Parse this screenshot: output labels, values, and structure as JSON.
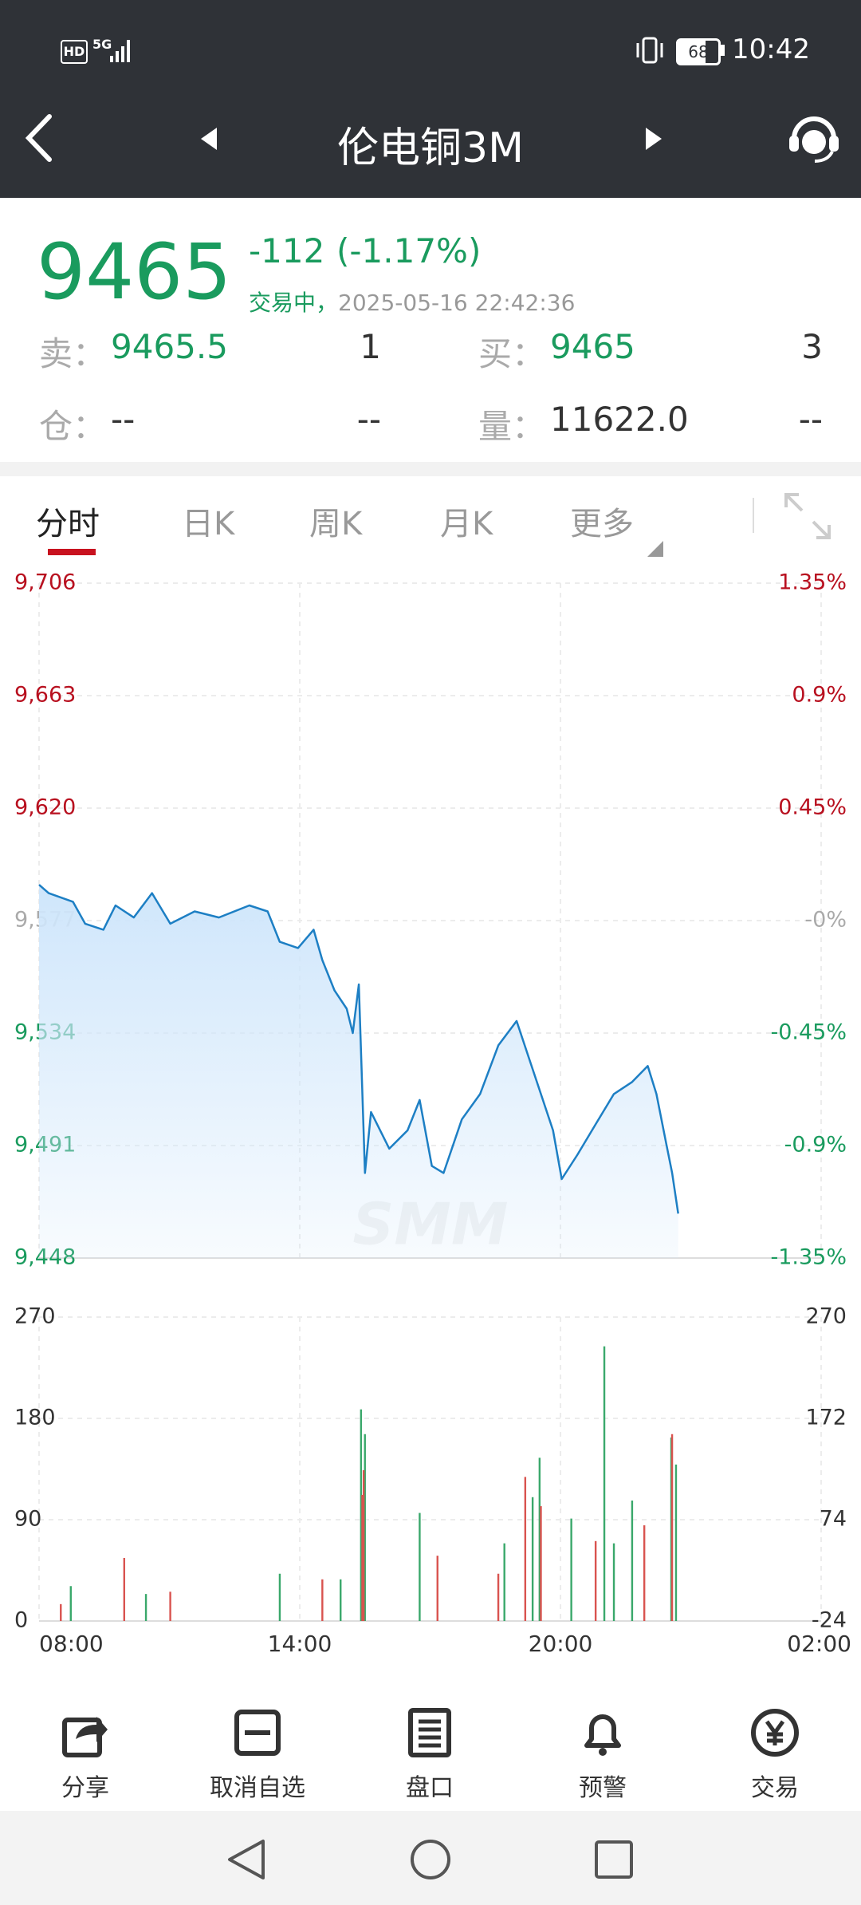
{
  "status_bar": {
    "hd": "HD",
    "network": "5G",
    "battery": "68",
    "time": "10:42"
  },
  "header": {
    "title": "伦电铜3M"
  },
  "quote": {
    "price": "9465",
    "change": "-112",
    "change_pct": "(-1.17%)",
    "status": "交易中，",
    "timestamp": "2025-05-16 22:42:36",
    "rows": [
      [
        "卖：",
        "9465.5",
        "1",
        "买：",
        "9465",
        "3"
      ],
      [
        "仓：",
        "--",
        "--",
        "量：",
        "11622.0",
        "--"
      ]
    ]
  },
  "tabs": [
    "分时",
    "日K",
    "周K",
    "月K",
    "更多"
  ],
  "chart_data": [
    {
      "type": "line",
      "color": "#1d7fc4",
      "watermark": "SMM",
      "grid": true,
      "up_color": "#b8101f",
      "down_color": "#1a9b5e",
      "flat_color": "#aaaaaa",
      "x": [
        8.0,
        8.22,
        8.78,
        9.06,
        9.48,
        9.76,
        10.18,
        10.6,
        11.02,
        11.58,
        12.14,
        12.84,
        13.26,
        13.54,
        13.96,
        14.32,
        14.52,
        14.8,
        15.08,
        15.22,
        15.36,
        15.5,
        15.64,
        16.06,
        16.48,
        16.76,
        17.04,
        17.31,
        17.73,
        18.15,
        18.57,
        18.99,
        19.27,
        19.55,
        19.83,
        20.03,
        20.39,
        20.81,
        21.23,
        21.65,
        22.01,
        22.21,
        22.43,
        22.57,
        22.71
      ],
      "values": [
        9590.7,
        9587.5,
        9584.2,
        9575.8,
        9573.5,
        9582.8,
        9578.2,
        9587.5,
        9575.8,
        9580.5,
        9578.2,
        9582.8,
        9580.5,
        9568.9,
        9566.5,
        9573.5,
        9561.9,
        9550.3,
        9543.3,
        9534.0,
        9552.6,
        9480.5,
        9503.8,
        9489.8,
        9496.8,
        9508.4,
        9483.2,
        9480.5,
        9501.0,
        9510.7,
        9529.3,
        9538.6,
        9524.7,
        9510.7,
        9496.8,
        9478.2,
        9487.5,
        9499.1,
        9510.7,
        9515.3,
        9521.4,
        9510.7,
        9492.2,
        9480.5,
        9465
      ],
      "xlim": [
        8,
        26
      ],
      "ylim": [
        9448,
        9706
      ],
      "yticks": [
        {
          "value": 9706,
          "label": "9,706"
        },
        {
          "value": 9663,
          "label": "9,663"
        },
        {
          "value": 9620,
          "label": "9,620"
        },
        {
          "value": 9577,
          "label": "9,577"
        },
        {
          "value": 9534,
          "label": "9,534"
        },
        {
          "value": 9491,
          "label": "9,491"
        },
        {
          "value": 9448,
          "label": "9,448"
        }
      ],
      "y2lim": [
        -1.35,
        1.35
      ],
      "y2ticks": [
        {
          "value": 1.35,
          "label": "1.35%"
        },
        {
          "value": 0.9,
          "label": "0.9%"
        },
        {
          "value": 0.45,
          "label": "0.45%"
        },
        {
          "value": 0,
          "label": "-0%"
        },
        {
          "value": -0.45,
          "label": "-0.45%"
        },
        {
          "value": -0.9,
          "label": "-0.9%"
        },
        {
          "value": -1.35,
          "label": "-1.35%"
        }
      ]
    },
    {
      "type": "bar",
      "grid": true,
      "series": [
        {
          "color": "#3aa86b",
          "x": [
            8.73,
            10.46,
            13.54,
            14.94,
            15.41,
            15.5,
            16.76,
            18.71,
            19.36,
            19.52,
            20.25,
            21.01,
            21.23,
            21.65,
            22.55,
            22.66
          ],
          "values": [
            31,
            24,
            42,
            37,
            188,
            166,
            96,
            69,
            110,
            145,
            91,
            244,
            69,
            107,
            163,
            139
          ]
        },
        {
          "color": "#d9534f",
          "x": [
            8.5,
            9.96,
            11.02,
            14.52,
            15.44,
            15.47,
            17.17,
            18.57,
            19.19,
            19.55,
            20.81,
            21.93,
            22.57
          ],
          "values": [
            15,
            56,
            26,
            37,
            112,
            134,
            58,
            42,
            128,
            102,
            71,
            85,
            166
          ]
        }
      ],
      "xlim": [
        8,
        26
      ],
      "xticks": [
        {
          "value": 8,
          "label": "08:00"
        },
        {
          "value": 14,
          "label": "14:00"
        },
        {
          "value": 20,
          "label": "20:00"
        },
        {
          "value": 26,
          "label": "02:00"
        }
      ],
      "ylim": [
        0,
        270
      ],
      "yticks": [
        0,
        90,
        180,
        270
      ],
      "y2lim": [
        -24,
        270
      ],
      "y2ticks": [
        270,
        172,
        74,
        -24
      ]
    }
  ],
  "toolbar": [
    "分享",
    "取消自选",
    "盘口",
    "预警",
    "交易"
  ]
}
